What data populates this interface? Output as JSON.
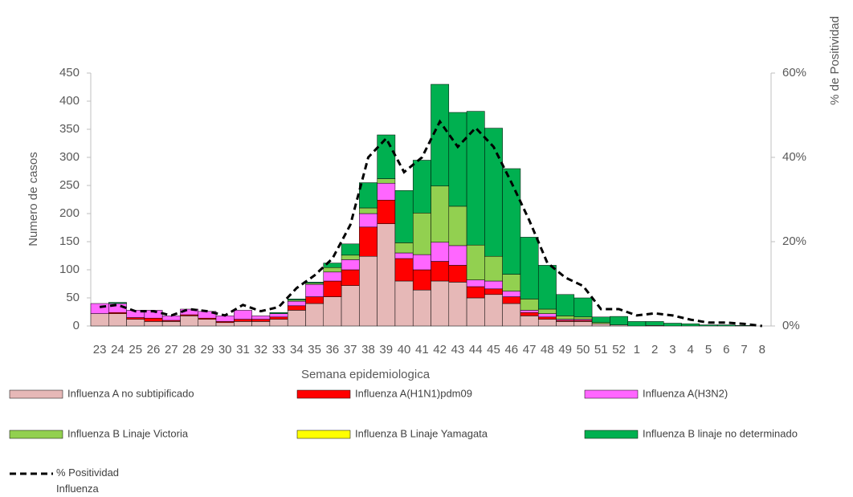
{
  "chart_data": {
    "type": "bar",
    "stacked": true,
    "categories": [
      "23",
      "24",
      "25",
      "26",
      "27",
      "28",
      "29",
      "30",
      "31",
      "32",
      "33",
      "34",
      "35",
      "36",
      "37",
      "38",
      "39",
      "40",
      "41",
      "42",
      "43",
      "44",
      "45",
      "46",
      "47",
      "48",
      "49",
      "50",
      "51",
      "52",
      "1",
      "2",
      "3",
      "4",
      "5",
      "6",
      "7",
      "8"
    ],
    "x_label": "Semana epidemiologica",
    "y_label": "Numero de casos",
    "y2_label": "% de Positividad",
    "ylim": [
      0,
      450
    ],
    "yticks": [
      0,
      50,
      100,
      150,
      200,
      250,
      300,
      350,
      400,
      450
    ],
    "y2lim": [
      0,
      60
    ],
    "y2ticks": [
      {
        "value": 0,
        "label": "0%"
      },
      {
        "value": 20,
        "label": "20%"
      },
      {
        "value": 40,
        "label": "40%"
      },
      {
        "value": 60,
        "label": "60%"
      }
    ],
    "series": [
      {
        "name": "Influenza A no subtipificado",
        "color": "#e6b8b7",
        "values": [
          22,
          22,
          12,
          8,
          8,
          18,
          12,
          6,
          8,
          8,
          12,
          28,
          40,
          52,
          72,
          124,
          182,
          80,
          64,
          80,
          78,
          50,
          56,
          40,
          18,
          12,
          8,
          8,
          4,
          2,
          0,
          1,
          0,
          0,
          0,
          0,
          0,
          0
        ]
      },
      {
        "name": "Influenza A(H1N1)pdm09",
        "color": "#ff0000",
        "values": [
          0,
          2,
          3,
          6,
          2,
          2,
          2,
          2,
          4,
          4,
          4,
          8,
          12,
          28,
          28,
          52,
          42,
          40,
          36,
          35,
          30,
          20,
          10,
          12,
          6,
          4,
          2,
          2,
          0,
          0,
          0,
          0,
          0,
          0,
          0,
          0,
          0,
          0
        ]
      },
      {
        "name": "Influenza A(H3N2)",
        "color": "#ff66ff",
        "values": [
          18,
          16,
          13,
          14,
          8,
          10,
          12,
          10,
          16,
          6,
          6,
          8,
          22,
          16,
          18,
          24,
          30,
          10,
          27,
          34,
          35,
          12,
          14,
          10,
          4,
          6,
          2,
          2,
          0,
          0,
          0,
          0,
          0,
          0,
          0,
          0,
          0,
          0
        ]
      },
      {
        "name": "Influenza B Linaje Victoria",
        "color": "#92d050",
        "values": [
          0,
          0,
          0,
          0,
          0,
          0,
          0,
          0,
          0,
          0,
          0,
          2,
          2,
          8,
          8,
          10,
          8,
          18,
          74,
          100,
          70,
          62,
          44,
          30,
          20,
          8,
          6,
          4,
          2,
          0,
          0,
          0,
          0,
          0,
          0,
          0,
          0,
          0
        ]
      },
      {
        "name": "Influenza B Linaje Yamagata",
        "color": "#ffff00",
        "values": [
          0,
          0,
          0,
          0,
          0,
          0,
          0,
          0,
          0,
          0,
          0,
          0,
          0,
          0,
          0,
          0,
          0,
          0,
          0,
          0,
          0,
          0,
          0,
          0,
          0,
          0,
          0,
          0,
          0,
          0,
          0,
          0,
          0,
          0,
          0,
          0,
          0,
          0
        ]
      },
      {
        "name": "Influenza B linaje no determinado",
        "color": "#00b050",
        "values": [
          0,
          2,
          0,
          0,
          0,
          0,
          0,
          0,
          0,
          0,
          2,
          2,
          2,
          8,
          20,
          45,
          78,
          93,
          94,
          181,
          167,
          238,
          228,
          188,
          110,
          78,
          38,
          34,
          10,
          15,
          8,
          7,
          5,
          4,
          2,
          2,
          1,
          0
        ]
      },
      {
        "name": "% Positividad Influenza",
        "type": "line",
        "axis": "y2",
        "color": "#000000",
        "values": [
          4.5,
          5,
          3.5,
          3.5,
          2.5,
          4,
          3.5,
          2.5,
          5,
          3.5,
          4.5,
          9,
          12,
          16,
          24,
          40,
          44.5,
          36.5,
          40,
          48.5,
          42.5,
          47,
          42.5,
          34,
          25,
          15,
          11.5,
          9.5,
          4,
          4,
          2.5,
          3,
          2.5,
          1.5,
          0.8,
          0.8,
          0.5,
          0
        ]
      }
    ]
  }
}
